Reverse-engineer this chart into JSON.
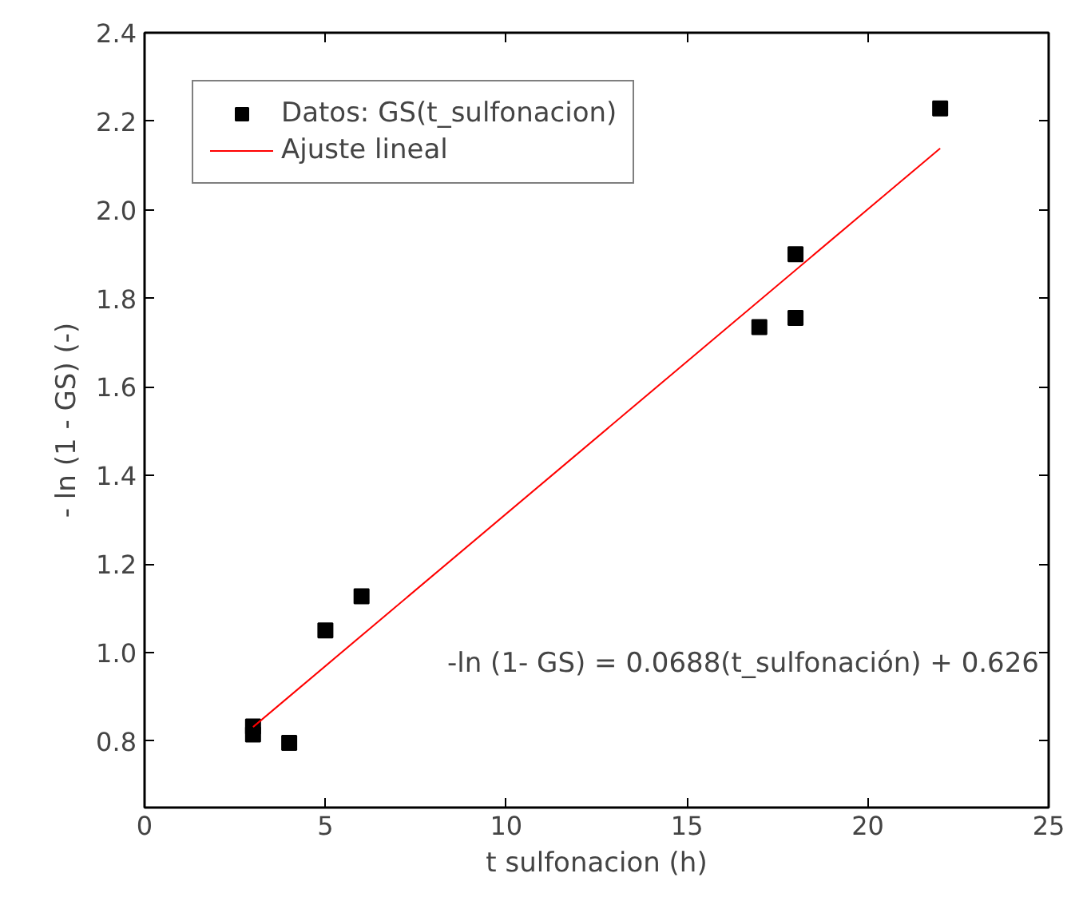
{
  "chart_data": {
    "type": "scatter",
    "xlabel": "t sulfonacion (h)",
    "ylabel": "- ln (1 - GS) (-)",
    "xlim": [
      0,
      25
    ],
    "xticks": [
      0,
      5,
      10,
      15,
      20,
      25
    ],
    "ylim": [
      0.65,
      2.4
    ],
    "yticks": [
      {
        "value": 0.8,
        "label": "0.8"
      },
      {
        "value": 1.0,
        "label": "1.0"
      },
      {
        "value": 1.2,
        "label": "1.2"
      },
      {
        "value": 1.4,
        "label": "1.4"
      },
      {
        "value": 1.6,
        "label": "1.6"
      },
      {
        "value": 1.8,
        "label": "1.8"
      },
      {
        "value": 2.0,
        "label": "2.0"
      },
      {
        "value": 2.2,
        "label": "2.2"
      },
      {
        "value": 2.4,
        "label": "2.4"
      }
    ],
    "grid": false,
    "legend": "top left",
    "series": [
      {
        "name": "Datos: GS(t_sulfonacion)",
        "marker": "square",
        "color": "#000000",
        "x": [
          3,
          3,
          4,
          5,
          6,
          17,
          18,
          18,
          22
        ],
        "values": [
          0.833,
          0.815,
          0.796,
          1.05,
          1.127,
          1.735,
          1.9,
          1.756,
          2.229
        ]
      },
      {
        "name": "Ajuste lineal",
        "type": "line",
        "color": "#ff0000",
        "x": [
          3,
          22
        ],
        "values": [
          0.832,
          2.139
        ]
      }
    ],
    "annotations": [
      "-ln (1- GS) = 0.0688(t_sulfonación) + 0.626"
    ]
  }
}
